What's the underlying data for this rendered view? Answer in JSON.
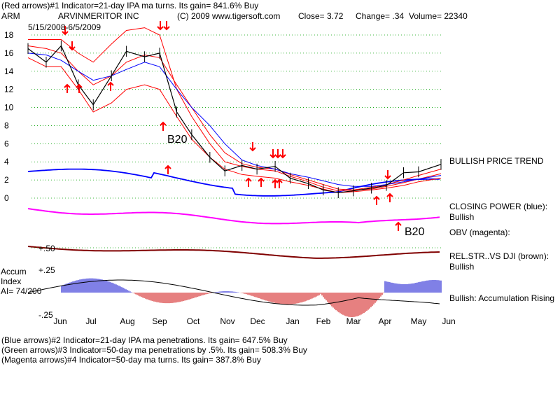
{
  "header": {
    "line1": "(Red arrows)#1 Indicator=21-day IPA ma turns. Its gain= 841.6% Buy",
    "ticker": "ARM",
    "company": "ARVINMERITOR INC",
    "copyright": "(C) 2009 www.tigersoft.com",
    "close": "Close=  3.72",
    "change": "Change= .34",
    "volume": "Volume= 22340",
    "date_range": "5/15/2008-6/5/2009"
  },
  "labels": {
    "bullish_price_trend": "BULLISH PRICE TREND",
    "closing_power": "CLOSING POWER (blue):",
    "closing_power_status": "Bullish",
    "obv": "OBV (magenta):",
    "relstr": "REL.STR..VS DJI (brown):",
    "relstr_status": "Bullish",
    "accum_rising": "Bullish: Accumulation Rising",
    "accum_title_1": "Accum",
    "accum_title_2": "Index",
    "ai": "AI= 74/200",
    "b20_a": "B20",
    "b20_b": "B20",
    "val_p50": "+.50",
    "val_p25": "+.25",
    "val_m25": "-.25"
  },
  "footer": {
    "line1": "(Blue arrows)#2 Indicator=21-day IPA ma penetrations. Its gain= 647.5% Buy",
    "line2": "(Green arrows)#3 Indicator=50-day ma penetrations by .5%. Its gain= 508.3% Buy",
    "line3": "(Magenta arrows)#4 Indicator=50-day ma turns. Its gain= 387.8% Buy"
  },
  "colors": {
    "price": "#000000",
    "ma_red": "#ff0000",
    "ma_blue": "#0000ff",
    "closing_power": "#0000ff",
    "obv": "#ff00ff",
    "relstr": "#800000",
    "accum_pos": "#0000cc",
    "accum_neg": "#cc0000",
    "grid": "#00a000",
    "arrow": "#ff0000"
  },
  "chart_data": {
    "type": "line",
    "title": "ARVINMERITOR INC",
    "y_ticks": [
      18,
      16,
      14,
      12,
      10,
      8,
      6,
      4,
      2,
      0
    ],
    "ylim": [
      0,
      18
    ],
    "x_ticks": [
      "Jun",
      "Jul",
      "Aug",
      "Sep",
      "Oct",
      "Nov",
      "Dec",
      "Jan",
      "Feb",
      "Mar",
      "Apr",
      "May",
      "Jun"
    ],
    "grid": true,
    "price": {
      "dates": [
        "2008-05-15",
        "2008-06-01",
        "2008-06-15",
        "2008-07-01",
        "2008-07-15",
        "2008-08-01",
        "2008-08-15",
        "2008-09-01",
        "2008-09-15",
        "2008-10-01",
        "2008-10-15",
        "2008-11-01",
        "2008-11-15",
        "2008-12-01",
        "2008-12-15",
        "2009-01-01",
        "2009-01-15",
        "2009-02-01",
        "2009-02-15",
        "2009-03-01",
        "2009-03-15",
        "2009-04-01",
        "2009-04-15",
        "2009-05-01",
        "2009-05-15",
        "2009-06-05"
      ],
      "close": [
        16.5,
        15.0,
        16.8,
        12.5,
        10.3,
        13.5,
        16.2,
        15.6,
        16.0,
        9.5,
        7.0,
        4.5,
        3.0,
        3.6,
        3.2,
        3.5,
        2.2,
        1.6,
        0.9,
        0.6,
        0.8,
        1.1,
        1.4,
        2.8,
        2.9,
        3.72
      ]
    },
    "ma_upper": [
      17.5,
      17.5,
      17.5,
      16.0,
      15.0,
      17.0,
      18.5,
      18.8,
      18.0,
      12.0,
      9.0,
      6.0,
      4.0,
      3.5,
      3.2,
      3.0,
      2.4,
      1.8,
      1.2,
      0.8,
      0.9,
      1.2,
      1.5,
      2.0,
      2.5,
      3.2
    ],
    "ma_mid": [
      16.8,
      16.5,
      16.0,
      14.0,
      12.5,
      13.5,
      15.0,
      15.8,
      15.5,
      12.5,
      10.0,
      7.0,
      5.0,
      3.8,
      3.4,
      3.2,
      2.6,
      2.0,
      1.5,
      1.0,
      0.9,
      1.0,
      1.3,
      1.7,
      2.1,
      2.7
    ],
    "ma_lower": [
      15.5,
      14.5,
      14.5,
      12.0,
      9.5,
      10.5,
      12.0,
      12.5,
      12.0,
      9.0,
      6.5,
      4.5,
      3.2,
      2.6,
      2.4,
      2.2,
      1.8,
      1.4,
      1.0,
      0.6,
      0.7,
      0.9,
      1.1,
      1.4,
      1.8,
      2.2
    ],
    "ma_blue": [
      16.0,
      15.8,
      15.2,
      14.0,
      13.0,
      13.5,
      14.2,
      15.0,
      14.5,
      12.0,
      10.0,
      8.0,
      6.0,
      4.2,
      3.6,
      3.2,
      2.7,
      2.3,
      1.9,
      1.5,
      1.3,
      1.3,
      1.5,
      1.8,
      2.1,
      2.5
    ],
    "accumulation_range": [
      -0.25,
      0.25
    ]
  }
}
